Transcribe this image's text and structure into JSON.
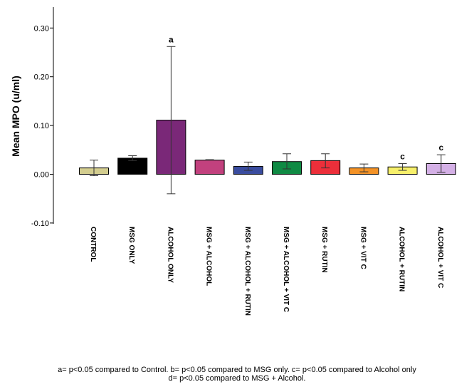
{
  "chart_data": {
    "type": "bar",
    "ylabel": "Mean MPO (u/ml)",
    "xlabel": "",
    "ylim": [
      -0.1,
      0.35
    ],
    "yticks": [
      -0.1,
      0.0,
      0.1,
      0.2,
      0.3
    ],
    "ytick_labels": [
      "-0.10",
      "0.00",
      "0.10",
      "0.20",
      "0.30"
    ],
    "grid": false,
    "error_bars": true,
    "categories": [
      "CONTROL",
      "MSG ONLY",
      "ALCOHOL ONLY",
      "MSG + ALCOHOL",
      "MSG + ALCOHOL + RUTIN",
      "MSG + ALCOHOL + VIT C",
      "MSG + RUTIN",
      "MSG + VIT C",
      "ALCOHOL + RUTIN",
      "ALCOHOL + VIT C"
    ],
    "values": [
      0.013,
      0.033,
      0.111,
      0.029,
      0.016,
      0.026,
      0.028,
      0.013,
      0.015,
      0.022
    ],
    "error_low": [
      -0.003,
      0.028,
      -0.04,
      0.029,
      0.008,
      0.011,
      0.013,
      0.005,
      0.008,
      0.004
    ],
    "error_high": [
      0.029,
      0.038,
      0.262,
      0.03,
      0.025,
      0.042,
      0.042,
      0.021,
      0.022,
      0.04
    ],
    "bar_colors": [
      "#d3cd8f",
      "#000000",
      "#7a2878",
      "#c2417e",
      "#3a4c9f",
      "#0f8a43",
      "#ec2f3a",
      "#f39226",
      "#f7f06b",
      "#d4b0e6"
    ],
    "significance_labels": [
      "",
      "",
      "a",
      "",
      "",
      "",
      "",
      "",
      "c",
      "c"
    ]
  },
  "footnote": {
    "line1": "a= p<0.05 compared to Control. b= p<0.05 compared to MSG only. c= p<0.05 compared to Alcohol only",
    "line2": "d= p<0.05 compared to MSG + Alcohol."
  }
}
